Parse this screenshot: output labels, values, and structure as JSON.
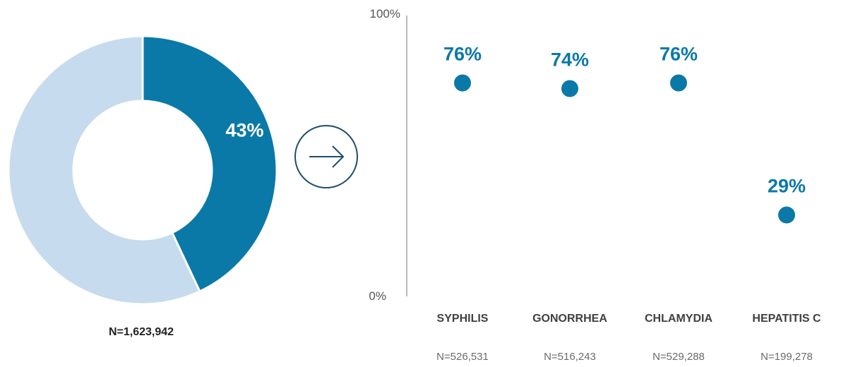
{
  "chart_data": [
    {
      "type": "pie",
      "style": "donut",
      "slices": [
        {
          "value": 43,
          "label": "43%",
          "color": "#0a79a8"
        },
        {
          "value": 57,
          "label": "",
          "color": "#c6dbed"
        }
      ],
      "note": "N=1,623,942"
    },
    {
      "type": "scatter",
      "style": "lollipop",
      "categories": [
        "SYPHILIS",
        "GONORRHEA",
        "CHLAMYDIA",
        "HEPATITIS C"
      ],
      "values": [
        76,
        74,
        76,
        29
      ],
      "value_labels": [
        "76%",
        "74%",
        "76%",
        "29%"
      ],
      "sample_sizes": [
        "N=526,531",
        "N=516,243",
        "N=529,288",
        "N=199,278"
      ],
      "ylim": [
        0,
        100
      ],
      "yticks": [
        "0%",
        "100%"
      ],
      "color": "#0a79a8"
    }
  ],
  "arrow_icon": "arrow-right-circle-icon"
}
